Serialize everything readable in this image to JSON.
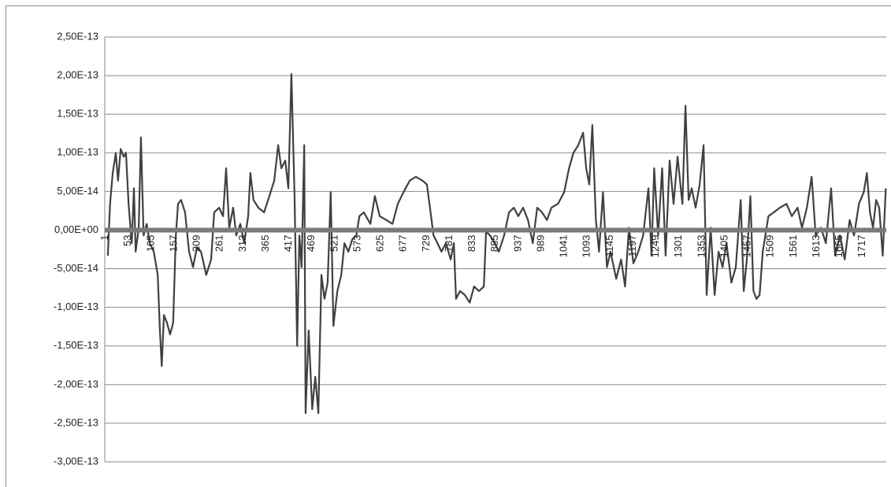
{
  "chart_data": {
    "type": "line",
    "x": [
      7,
      12,
      18,
      25,
      30,
      36,
      43,
      48,
      54,
      61,
      66,
      70,
      77,
      82,
      88,
      95,
      102,
      111,
      120,
      125,
      129,
      134,
      141,
      148,
      155,
      161,
      166,
      173,
      182,
      191,
      200,
      209,
      218,
      230,
      241,
      248,
      259,
      268,
      275,
      282,
      291,
      298,
      307,
      316,
      325,
      330,
      337,
      348,
      361,
      373,
      384,
      393,
      400,
      409,
      416,
      423,
      430,
      436,
      441,
      446,
      452,
      455,
      462,
      470,
      477,
      484,
      491,
      498,
      505,
      512,
      518,
      527,
      536,
      543,
      552,
      561,
      570,
      577,
      587,
      602,
      612,
      623,
      638,
      652,
      664,
      677,
      691,
      705,
      720,
      730,
      737,
      745,
      754,
      763,
      773,
      784,
      791,
      796,
      805,
      816,
      827,
      837,
      848,
      859,
      864,
      873,
      884,
      893,
      905,
      916,
      927,
      937,
      948,
      959,
      970,
      980,
      991,
      1002,
      1012,
      1027,
      1041,
      1052,
      1062,
      1073,
      1084,
      1091,
      1098,
      1105,
      1113,
      1120,
      1129,
      1138,
      1146,
      1159,
      1170,
      1179,
      1188,
      1198,
      1209,
      1220,
      1232,
      1239,
      1245,
      1254,
      1263,
      1271,
      1280,
      1289,
      1298,
      1309,
      1316,
      1323,
      1330,
      1339,
      1348,
      1357,
      1364,
      1373,
      1382,
      1391,
      1400,
      1409,
      1420,
      1430,
      1441,
      1448,
      1455,
      1463,
      1470,
      1477,
      1484,
      1491,
      1504,
      1516,
      1530,
      1545,
      1557,
      1570,
      1580,
      1591,
      1602,
      1611,
      1623,
      1634,
      1646,
      1655,
      1666,
      1677,
      1688,
      1698,
      1709,
      1720,
      1727,
      1734,
      1741,
      1748,
      1755,
      1763,
      1770
    ],
    "series": [
      {
        "color": "#404040",
        "values": [
          -3.3e-14,
          3.4e-14,
          7.4e-14,
          1e-13,
          6.4e-14,
          1.05e-13,
          9.5e-14,
          1e-13,
          3.4e-14,
          -1.7e-14,
          5.4e-14,
          -2.8e-14,
          3e-15,
          1.2e-13,
          -7e-15,
          8e-15,
          -1.7e-14,
          -2.8e-14,
          -5.8e-14,
          -1.3e-13,
          -1.76e-13,
          -1.1e-13,
          -1.2e-13,
          -1.35e-13,
          -1.2e-13,
          -7e-15,
          3.4e-14,
          3.9e-14,
          2.3e-14,
          -2.8e-14,
          -4.8e-14,
          -2.2e-14,
          -2.8e-14,
          -5.8e-14,
          -3.8e-14,
          2.3e-14,
          2.9e-14,
          1.8e-14,
          8e-14,
          3e-15,
          2.9e-14,
          -7e-15,
          8e-15,
          -1.7e-14,
          1.8e-14,
          7.4e-14,
          3.9e-14,
          2.9e-14,
          2.3e-14,
          4.4e-14,
          6.4e-14,
          1.1e-13,
          8e-14,
          9e-14,
          5.4e-14,
          2.02e-13,
          4.4e-14,
          -1.5e-13,
          -7e-15,
          -4.8e-14,
          1.1e-13,
          -2.37e-13,
          -1.3e-13,
          -2.32e-13,
          -1.9e-13,
          -2.37e-13,
          -5.8e-14,
          -8.9e-14,
          -6.8e-14,
          4.9e-14,
          -1.24e-13,
          -7.9e-14,
          -5.8e-14,
          -1.7e-14,
          -2.8e-14,
          -1.2e-14,
          -7e-15,
          1.8e-14,
          2.3e-14,
          8e-15,
          4.4e-14,
          1.8e-14,
          1.3e-14,
          8e-15,
          3.4e-14,
          4.9e-14,
          6.4e-14,
          6.9e-14,
          6.4e-14,
          5.9e-14,
          2.9e-14,
          -7e-15,
          -1.7e-14,
          -2.8e-14,
          -1.7e-14,
          -3.8e-14,
          -1.7e-14,
          -8.9e-14,
          -7.9e-14,
          -8.4e-14,
          -9.4e-14,
          -7.3e-14,
          -7.9e-14,
          -7.3e-14,
          -2e-15,
          -7e-15,
          -1.7e-14,
          -2.8e-14,
          -7e-15,
          2.3e-14,
          2.9e-14,
          1.8e-14,
          2.9e-14,
          1.3e-14,
          -1.7e-14,
          2.9e-14,
          2.3e-14,
          1.3e-14,
          2.9e-14,
          3.4e-14,
          4.9e-14,
          8e-14,
          1e-13,
          1.1e-13,
          1.26e-13,
          8e-14,
          5.9e-14,
          1.36e-13,
          1.3e-14,
          -2.8e-14,
          4.9e-14,
          -4.8e-14,
          -2.8e-14,
          -6.3e-14,
          -3.8e-14,
          -7.3e-14,
          3e-15,
          -4.3e-14,
          -2.8e-14,
          -7e-15,
          5.4e-14,
          -3.3e-14,
          8e-14,
          -7e-15,
          8e-14,
          -3.3e-14,
          9e-14,
          3.4e-14,
          9.5e-14,
          3.4e-14,
          1.61e-13,
          3.9e-14,
          5.4e-14,
          2.9e-14,
          5.9e-14,
          1.1e-13,
          -8.4e-14,
          3e-15,
          -8.4e-14,
          -2.8e-14,
          -4.8e-14,
          -1.7e-14,
          -6.8e-14,
          -4.8e-14,
          3.9e-14,
          -7.9e-14,
          -3.8e-14,
          4.4e-14,
          -7.9e-14,
          -8.9e-14,
          -8.4e-14,
          -2.8e-14,
          1.8e-14,
          2.3e-14,
          2.9e-14,
          3.4e-14,
          1.8e-14,
          2.9e-14,
          3e-15,
          2.9e-14,
          6.9e-14,
          -7e-15,
          3e-15,
          -1.7e-14,
          5.4e-14,
          -3.3e-14,
          -7e-15,
          -3.8e-14,
          1.3e-14,
          -7e-15,
          3.4e-14,
          4.9e-14,
          7.4e-14,
          2.3e-14,
          3e-15,
          3.9e-14,
          2.9e-14,
          -3.3e-14,
          5.4e-14
        ]
      }
    ],
    "xlim": [
      0,
      1771
    ],
    "xticks": [
      1,
      53,
      105,
      157,
      209,
      261,
      313,
      365,
      417,
      469,
      521,
      573,
      625,
      677,
      729,
      781,
      833,
      885,
      937,
      989,
      1041,
      1093,
      1145,
      1197,
      1249,
      1301,
      1353,
      1405,
      1457,
      1509,
      1561,
      1613,
      1665,
      1717
    ],
    "ylim": [
      -3e-13,
      2.5e-13
    ],
    "yticks": [
      {
        "value": -3e-13,
        "label": "-3,00E-13"
      },
      {
        "value": -2.5e-13,
        "label": "-2,50E-13"
      },
      {
        "value": -2e-13,
        "label": "-2,00E-13"
      },
      {
        "value": -1.5e-13,
        "label": "-1,50E-13"
      },
      {
        "value": -1e-13,
        "label": "-1,00E-13"
      },
      {
        "value": -5e-14,
        "label": "-5,00E-14"
      },
      {
        "value": 0,
        "label": "0,00E+00"
      },
      {
        "value": 5e-14,
        "label": "5,00E-14"
      },
      {
        "value": 1e-13,
        "label": "1,00E-13"
      },
      {
        "value": 1.5e-13,
        "label": "1,50E-13"
      },
      {
        "value": 2e-13,
        "label": "2,00E-13"
      },
      {
        "value": 2.5e-13,
        "label": "2,50E-13"
      }
    ],
    "grid": true
  }
}
